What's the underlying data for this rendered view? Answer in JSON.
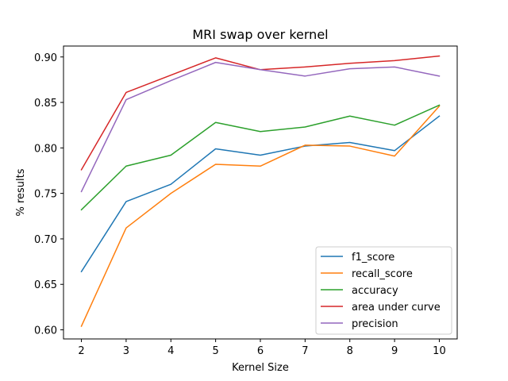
{
  "chart_data": {
    "type": "line",
    "title": "MRI swap over kernel",
    "xlabel": "Kernel Size",
    "ylabel": "% results",
    "x": [
      2,
      3,
      4,
      5,
      6,
      7,
      8,
      9,
      10
    ],
    "xlim": [
      1.6,
      10.4
    ],
    "ylim": [
      0.59,
      0.912
    ],
    "xticks": [
      2,
      3,
      4,
      5,
      6,
      7,
      8,
      9,
      10
    ],
    "yticks": [
      0.6,
      0.65,
      0.7,
      0.75,
      0.8,
      0.85,
      0.9
    ],
    "ytick_labels": [
      "0.60",
      "0.65",
      "0.70",
      "0.75",
      "0.80",
      "0.85",
      "0.90"
    ],
    "grid": false,
    "legend_position": "lower-right",
    "series": [
      {
        "name": "f1_score",
        "color": "#1f77b4",
        "values": [
          0.664,
          0.741,
          0.76,
          0.799,
          0.792,
          0.802,
          0.806,
          0.797,
          0.835
        ]
      },
      {
        "name": "recall_score",
        "color": "#ff7f0e",
        "values": [
          0.604,
          0.712,
          0.75,
          0.782,
          0.78,
          0.803,
          0.802,
          0.791,
          0.846
        ]
      },
      {
        "name": "accuracy",
        "color": "#2ca02c",
        "values": [
          0.732,
          0.78,
          0.792,
          0.828,
          0.818,
          0.823,
          0.835,
          0.825,
          0.847
        ]
      },
      {
        "name": "area under curve",
        "color": "#d62728",
        "values": [
          0.776,
          0.861,
          0.88,
          0.899,
          0.886,
          0.889,
          0.893,
          0.896,
          0.901
        ]
      },
      {
        "name": "precision",
        "color": "#9467bd",
        "values": [
          0.752,
          0.853,
          0.874,
          0.894,
          0.886,
          0.879,
          0.887,
          0.889,
          0.879
        ]
      }
    ]
  }
}
